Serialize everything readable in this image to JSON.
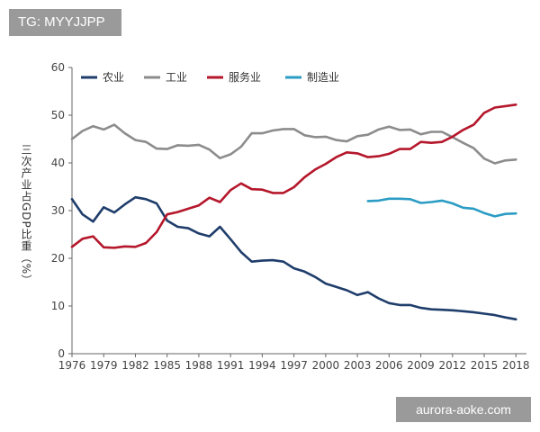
{
  "header": {
    "tag": "TG: MYYJJPP"
  },
  "watermark": {
    "text": "aurora-aoke.com"
  },
  "chart_data": {
    "type": "line",
    "title": "",
    "xlabel": "",
    "ylabel": "三次产业占GDP比重（%）",
    "ylim": [
      0,
      60
    ],
    "xlim": [
      1976,
      2019
    ],
    "yticks": [
      "0",
      "10",
      "20",
      "30",
      "40",
      "50",
      "60"
    ],
    "xticks": [
      "1976",
      "1979",
      "1982",
      "1985",
      "1988",
      "1991",
      "1994",
      "1997",
      "2000",
      "2003",
      "2006",
      "2009",
      "2012",
      "2015",
      "2018"
    ],
    "grid": false,
    "legend_position": "top-left",
    "series": [
      {
        "name": "农业",
        "color": "#1f3d6b",
        "x": [
          1976,
          1977,
          1978,
          1979,
          1980,
          1981,
          1982,
          1983,
          1984,
          1985,
          1986,
          1987,
          1988,
          1989,
          1990,
          1991,
          1992,
          1993,
          1994,
          1995,
          1996,
          1997,
          1998,
          1999,
          2000,
          2001,
          2002,
          2003,
          2004,
          2005,
          2006,
          2007,
          2008,
          2009,
          2010,
          2011,
          2012,
          2013,
          2014,
          2015,
          2016,
          2017,
          2018
        ],
        "values": [
          32.4,
          29.2,
          27.7,
          30.7,
          29.6,
          31.3,
          32.8,
          32.4,
          31.5,
          27.9,
          26.6,
          26.3,
          25.2,
          24.6,
          26.6,
          24.0,
          21.3,
          19.3,
          19.5,
          19.6,
          19.3,
          17.9,
          17.2,
          16.1,
          14.7,
          14.0,
          13.3,
          12.3,
          12.9,
          11.6,
          10.6,
          10.2,
          10.2,
          9.6,
          9.3,
          9.2,
          9.1,
          8.9,
          8.7,
          8.4,
          8.1,
          7.6,
          7.2
        ]
      },
      {
        "name": "工业",
        "color": "#8c8c8c",
        "x": [
          1976,
          1977,
          1978,
          1979,
          1980,
          1981,
          1982,
          1983,
          1984,
          1985,
          1986,
          1987,
          1988,
          1989,
          1990,
          1991,
          1992,
          1993,
          1994,
          1995,
          1996,
          1997,
          1998,
          1999,
          2000,
          2001,
          2002,
          2003,
          2004,
          2005,
          2006,
          2007,
          2008,
          2009,
          2010,
          2011,
          2012,
          2013,
          2014,
          2015,
          2016,
          2017,
          2018
        ],
        "values": [
          45.0,
          46.7,
          47.7,
          47.0,
          48.0,
          46.2,
          44.8,
          44.4,
          43.0,
          42.9,
          43.7,
          43.6,
          43.8,
          42.8,
          41.0,
          41.8,
          43.4,
          46.2,
          46.2,
          46.8,
          47.1,
          47.1,
          45.8,
          45.4,
          45.5,
          44.8,
          44.5,
          45.6,
          45.9,
          47.0,
          47.6,
          46.9,
          47.0,
          46.0,
          46.5,
          46.5,
          45.4,
          44.2,
          43.1,
          40.9,
          39.9,
          40.5,
          40.7
        ]
      },
      {
        "name": "服务业",
        "color": "#b5172b",
        "x": [
          1976,
          1977,
          1978,
          1979,
          1980,
          1981,
          1982,
          1983,
          1984,
          1985,
          1986,
          1987,
          1988,
          1989,
          1990,
          1991,
          1992,
          1993,
          1994,
          1995,
          1996,
          1997,
          1998,
          1999,
          2000,
          2001,
          2002,
          2003,
          2004,
          2005,
          2006,
          2007,
          2008,
          2009,
          2010,
          2011,
          2012,
          2013,
          2014,
          2015,
          2016,
          2017,
          2018
        ],
        "values": [
          22.4,
          24.1,
          24.6,
          22.3,
          22.2,
          22.5,
          22.4,
          23.2,
          25.5,
          29.2,
          29.7,
          30.4,
          31.1,
          32.7,
          31.8,
          34.3,
          35.7,
          34.5,
          34.4,
          33.7,
          33.7,
          34.9,
          37.0,
          38.6,
          39.8,
          41.2,
          42.2,
          42.0,
          41.2,
          41.4,
          41.9,
          42.9,
          42.9,
          44.4,
          44.2,
          44.4,
          45.5,
          46.9,
          48.0,
          50.5,
          51.6,
          51.9,
          52.2
        ]
      },
      {
        "name": "制造业",
        "color": "#2b9cc4",
        "x": [
          2004,
          2005,
          2006,
          2007,
          2008,
          2009,
          2010,
          2011,
          2012,
          2013,
          2014,
          2015,
          2016,
          2017,
          2018
        ],
        "values": [
          32.0,
          32.1,
          32.5,
          32.5,
          32.4,
          31.6,
          31.8,
          32.1,
          31.5,
          30.6,
          30.4,
          29.5,
          28.8,
          29.3,
          29.4
        ]
      }
    ]
  }
}
